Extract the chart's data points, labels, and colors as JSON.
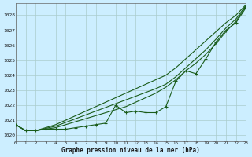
{
  "title": "Graphe pression niveau de la mer (hPa)",
  "background_color": "#cceeff",
  "grid_color": "#aacccc",
  "line_color": "#1a5c1a",
  "x_min": 0,
  "x_max": 23,
  "y_min": 1019.6,
  "y_max": 1028.8,
  "y_ticks": [
    1020,
    1021,
    1022,
    1023,
    1024,
    1025,
    1026,
    1027,
    1028
  ],
  "x_ticks": [
    0,
    1,
    2,
    3,
    4,
    5,
    6,
    7,
    8,
    9,
    10,
    11,
    12,
    13,
    14,
    15,
    16,
    17,
    18,
    19,
    20,
    21,
    22,
    23
  ],
  "series_markers": [
    1020.7,
    1020.3,
    1020.3,
    1020.4,
    1020.4,
    1020.4,
    1020.5,
    1020.6,
    1020.7,
    1020.8,
    1022.0,
    1021.5,
    1021.6,
    1021.5,
    1021.5,
    1021.9,
    1023.6,
    1024.3,
    1024.1,
    1025.1,
    1026.2,
    1027.0,
    1027.5,
    1028.5
  ],
  "series_smooth1": [
    1020.7,
    1020.3,
    1020.3,
    1020.4,
    1020.5,
    1020.7,
    1020.9,
    1021.1,
    1021.3,
    1021.5,
    1021.7,
    1021.9,
    1022.2,
    1022.5,
    1022.8,
    1023.2,
    1023.7,
    1024.3,
    1024.8,
    1025.4,
    1026.1,
    1026.9,
    1027.6,
    1028.6
  ],
  "series_smooth2": [
    1020.7,
    1020.3,
    1020.3,
    1020.45,
    1020.6,
    1020.85,
    1021.1,
    1021.35,
    1021.6,
    1021.85,
    1022.1,
    1022.35,
    1022.6,
    1022.85,
    1023.1,
    1023.4,
    1023.9,
    1024.5,
    1025.1,
    1025.7,
    1026.4,
    1027.15,
    1027.75,
    1028.65
  ],
  "series_smooth3": [
    1020.7,
    1020.3,
    1020.3,
    1020.5,
    1020.7,
    1021.0,
    1021.3,
    1021.6,
    1021.9,
    1022.2,
    1022.5,
    1022.8,
    1023.1,
    1023.4,
    1023.7,
    1024.0,
    1024.5,
    1025.1,
    1025.7,
    1026.3,
    1026.9,
    1027.5,
    1028.0,
    1028.7
  ]
}
